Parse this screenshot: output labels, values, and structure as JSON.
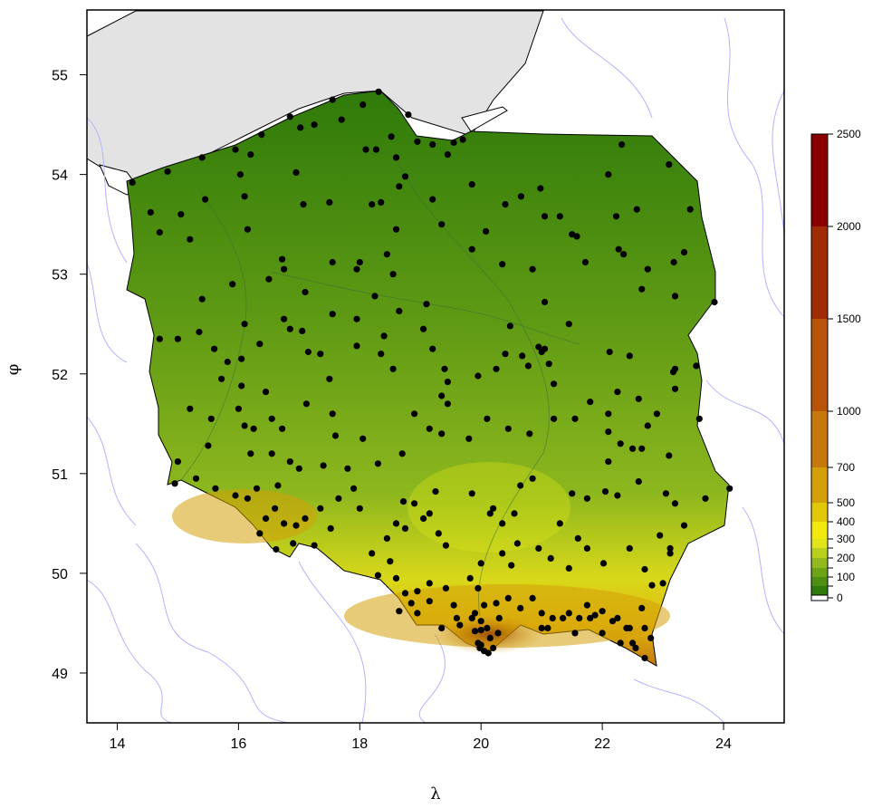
{
  "map": {
    "x_axis": {
      "label": "λ",
      "ticks": [
        {
          "value": 14,
          "label": "14"
        },
        {
          "value": 16,
          "label": "16"
        },
        {
          "value": 18,
          "label": "18"
        },
        {
          "value": 20,
          "label": "20"
        },
        {
          "value": 22,
          "label": "22"
        },
        {
          "value": 24,
          "label": "24"
        }
      ],
      "range": [
        13.5,
        25.0
      ]
    },
    "y_axis": {
      "label": "φ",
      "ticks": [
        {
          "value": 49,
          "label": "49"
        },
        {
          "value": 50,
          "label": "50"
        },
        {
          "value": 51,
          "label": "51"
        },
        {
          "value": 52,
          "label": "52"
        },
        {
          "value": 53,
          "label": "53"
        },
        {
          "value": 54,
          "label": "54"
        },
        {
          "value": 55,
          "label": "55"
        }
      ],
      "range": [
        48.5,
        55.65
      ]
    },
    "colors": {
      "sea": "#e3e3e3",
      "rivers": "#b3b3ff",
      "stations": "#000000",
      "border": "#000000"
    }
  },
  "legend": {
    "levels": [
      {
        "value": 0,
        "label": "0",
        "color": "#ffffff"
      },
      {
        "value": 50,
        "label": "",
        "color": "#2f7a0a"
      },
      {
        "value": 100,
        "label": "100",
        "color": "#4d8f10"
      },
      {
        "value": 150,
        "label": "",
        "color": "#6ea318"
      },
      {
        "value": 200,
        "label": "200",
        "color": "#92ba1f"
      },
      {
        "value": 250,
        "label": "",
        "color": "#b7cf1d"
      },
      {
        "value": 300,
        "label": "300",
        "color": "#e0e418"
      },
      {
        "value": 400,
        "label": "400",
        "color": "#f2ea0c"
      },
      {
        "value": 500,
        "label": "500",
        "color": "#e3c80a"
      },
      {
        "value": 700,
        "label": "700",
        "color": "#d4a00a"
      },
      {
        "value": 1000,
        "label": "1000",
        "color": "#c7780c"
      },
      {
        "value": 1500,
        "label": "1500",
        "color": "#b8530a"
      },
      {
        "value": 2000,
        "label": "2000",
        "color": "#9e2c05"
      },
      {
        "value": 2500,
        "label": "2500",
        "color": "#8a0000"
      }
    ]
  },
  "stations": [
    [
      18.31,
      54.83
    ],
    [
      18.8,
      54.6
    ],
    [
      17.55,
      54.75
    ],
    [
      16.85,
      54.58
    ],
    [
      17.02,
      54.47
    ],
    [
      17.25,
      54.5
    ],
    [
      16.38,
      54.4
    ],
    [
      15.95,
      54.25
    ],
    [
      15.4,
      54.17
    ],
    [
      14.83,
      54.03
    ],
    [
      14.25,
      53.92
    ],
    [
      14.55,
      53.62
    ],
    [
      14.7,
      53.42
    ],
    [
      15.2,
      53.35
    ],
    [
      15.05,
      53.6
    ],
    [
      15.45,
      53.75
    ],
    [
      16.2,
      54.2
    ],
    [
      16.03,
      54.0
    ],
    [
      16.1,
      53.78
    ],
    [
      16.15,
      53.45
    ],
    [
      17.5,
      53.72
    ],
    [
      17.07,
      53.7
    ],
    [
      16.95,
      54.02
    ],
    [
      17.7,
      54.55
    ],
    [
      18.05,
      54.7
    ],
    [
      18.1,
      54.25
    ],
    [
      18.27,
      54.25
    ],
    [
      18.52,
      54.38
    ],
    [
      18.6,
      54.17
    ],
    [
      18.95,
      54.33
    ],
    [
      19.2,
      54.3
    ],
    [
      19.45,
      54.2
    ],
    [
      19.55,
      54.32
    ],
    [
      19.7,
      54.35
    ],
    [
      18.75,
      53.98
    ],
    [
      18.65,
      53.88
    ],
    [
      18.35,
      53.72
    ],
    [
      18.2,
      53.7
    ],
    [
      17.55,
      53.12
    ],
    [
      17.95,
      53.05
    ],
    [
      18.0,
      53.12
    ],
    [
      18.45,
      53.2
    ],
    [
      18.55,
      53.0
    ],
    [
      18.6,
      53.45
    ],
    [
      19.2,
      53.75
    ],
    [
      19.35,
      53.5
    ],
    [
      19.85,
      53.9
    ],
    [
      19.85,
      53.25
    ],
    [
      20.08,
      53.43
    ],
    [
      20.4,
      53.7
    ],
    [
      20.66,
      53.78
    ],
    [
      20.98,
      53.86
    ],
    [
      21.05,
      53.58
    ],
    [
      21.3,
      53.58
    ],
    [
      21.5,
      53.4
    ],
    [
      21.58,
      53.38
    ],
    [
      21.72,
      53.12
    ],
    [
      22.35,
      53.2
    ],
    [
      22.23,
      53.58
    ],
    [
      22.57,
      53.65
    ],
    [
      22.1,
      54.0
    ],
    [
      22.32,
      54.3
    ],
    [
      23.1,
      54.1
    ],
    [
      23.45,
      53.65
    ],
    [
      23.18,
      53.12
    ],
    [
      23.35,
      53.22
    ],
    [
      23.2,
      52.78
    ],
    [
      22.75,
      53.05
    ],
    [
      22.65,
      52.85
    ],
    [
      22.27,
      53.25
    ],
    [
      23.85,
      52.72
    ],
    [
      20.35,
      53.1
    ],
    [
      20.85,
      53.05
    ],
    [
      21.05,
      52.72
    ],
    [
      20.48,
      52.48
    ],
    [
      20.68,
      52.18
    ],
    [
      20.95,
      52.27
    ],
    [
      21.0,
      52.22
    ],
    [
      21.05,
      52.25
    ],
    [
      21.45,
      52.5
    ],
    [
      21.12,
      52.1
    ],
    [
      21.2,
      51.9
    ],
    [
      20.78,
      52.08
    ],
    [
      20.25,
      52.05
    ],
    [
      20.4,
      52.2
    ],
    [
      19.95,
      51.98
    ],
    [
      19.4,
      52.05
    ],
    [
      19.2,
      52.25
    ],
    [
      19.05,
      52.45
    ],
    [
      19.1,
      52.7
    ],
    [
      18.65,
      52.63
    ],
    [
      18.25,
      52.78
    ],
    [
      17.95,
      52.55
    ],
    [
      17.55,
      52.6
    ],
    [
      17.05,
      52.43
    ],
    [
      16.85,
      52.45
    ],
    [
      16.75,
      52.55
    ],
    [
      16.35,
      52.3
    ],
    [
      16.05,
      52.15
    ],
    [
      15.82,
      52.12
    ],
    [
      15.6,
      52.25
    ],
    [
      15.35,
      52.42
    ],
    [
      15.0,
      52.35
    ],
    [
      14.7,
      52.35
    ],
    [
      15.4,
      52.75
    ],
    [
      15.9,
      52.9
    ],
    [
      16.1,
      52.5
    ],
    [
      16.5,
      52.95
    ],
    [
      16.75,
      53.05
    ],
    [
      16.72,
      53.15
    ],
    [
      17.1,
      52.82
    ],
    [
      17.15,
      52.22
    ],
    [
      17.35,
      52.2
    ],
    [
      17.95,
      52.28
    ],
    [
      18.35,
      52.2
    ],
    [
      18.55,
      52.05
    ],
    [
      18.4,
      52.38
    ],
    [
      17.5,
      51.95
    ],
    [
      17.55,
      51.6
    ],
    [
      17.12,
      51.7
    ],
    [
      16.45,
      51.82
    ],
    [
      16.55,
      51.55
    ],
    [
      16.05,
      51.88
    ],
    [
      16.0,
      51.65
    ],
    [
      16.1,
      51.48
    ],
    [
      15.55,
      51.55
    ],
    [
      15.72,
      51.95
    ],
    [
      15.2,
      51.65
    ],
    [
      15.5,
      51.28
    ],
    [
      15.0,
      51.12
    ],
    [
      14.95,
      50.9
    ],
    [
      15.3,
      50.95
    ],
    [
      15.62,
      50.85
    ],
    [
      15.95,
      50.78
    ],
    [
      16.15,
      50.75
    ],
    [
      16.3,
      50.85
    ],
    [
      16.65,
      50.88
    ],
    [
      16.6,
      50.65
    ],
    [
      16.45,
      50.55
    ],
    [
      16.75,
      50.5
    ],
    [
      16.35,
      50.4
    ],
    [
      16.62,
      50.24
    ],
    [
      16.9,
      50.3
    ],
    [
      16.95,
      50.48
    ],
    [
      17.1,
      50.55
    ],
    [
      17.35,
      50.65
    ],
    [
      17.52,
      50.45
    ],
    [
      17.25,
      50.28
    ],
    [
      17.65,
      50.75
    ],
    [
      17.9,
      50.85
    ],
    [
      18.0,
      50.65
    ],
    [
      17.8,
      51.05
    ],
    [
      17.4,
      51.08
    ],
    [
      17.0,
      51.05
    ],
    [
      16.85,
      51.12
    ],
    [
      16.55,
      51.2
    ],
    [
      16.2,
      51.2
    ],
    [
      16.25,
      51.45
    ],
    [
      16.72,
      51.45
    ],
    [
      17.6,
      51.38
    ],
    [
      18.05,
      51.35
    ],
    [
      18.3,
      51.1
    ],
    [
      18.7,
      51.2
    ],
    [
      18.9,
      51.6
    ],
    [
      19.35,
      51.78
    ],
    [
      19.45,
      51.7
    ],
    [
      19.45,
      51.92
    ],
    [
      19.15,
      51.45
    ],
    [
      19.35,
      51.4
    ],
    [
      19.8,
      51.35
    ],
    [
      20.1,
      51.55
    ],
    [
      20.45,
      51.45
    ],
    [
      20.8,
      51.4
    ],
    [
      21.2,
      51.55
    ],
    [
      21.55,
      51.55
    ],
    [
      21.8,
      51.72
    ],
    [
      22.1,
      51.6
    ],
    [
      22.25,
      51.82
    ],
    [
      22.3,
      51.3
    ],
    [
      22.5,
      51.25
    ],
    [
      22.65,
      51.25
    ],
    [
      22.1,
      51.42
    ],
    [
      22.6,
      51.75
    ],
    [
      22.9,
      51.6
    ],
    [
      23.2,
      52.05
    ],
    [
      23.55,
      52.08
    ],
    [
      23.17,
      52.02
    ],
    [
      22.45,
      52.18
    ],
    [
      22.12,
      52.22
    ],
    [
      23.2,
      51.85
    ],
    [
      23.6,
      51.55
    ],
    [
      22.75,
      51.48
    ],
    [
      22.1,
      51.12
    ],
    [
      23.1,
      51.18
    ],
    [
      22.6,
      50.92
    ],
    [
      22.05,
      50.82
    ],
    [
      22.25,
      50.78
    ],
    [
      23.05,
      50.8
    ],
    [
      23.2,
      50.7
    ],
    [
      22.95,
      50.38
    ],
    [
      23.35,
      50.48
    ],
    [
      23.12,
      50.2
    ],
    [
      23.12,
      50.25
    ],
    [
      23.7,
      50.75
    ],
    [
      24.1,
      50.85
    ],
    [
      21.75,
      50.75
    ],
    [
      21.5,
      50.8
    ],
    [
      20.85,
      50.95
    ],
    [
      20.65,
      50.88
    ],
    [
      20.55,
      50.6
    ],
    [
      20.35,
      50.5
    ],
    [
      20.15,
      50.6
    ],
    [
      20.2,
      50.65
    ],
    [
      19.85,
      50.8
    ],
    [
      19.25,
      50.82
    ],
    [
      19.15,
      50.6
    ],
    [
      18.9,
      50.7
    ],
    [
      18.72,
      50.72
    ],
    [
      18.75,
      50.45
    ],
    [
      18.6,
      50.5
    ],
    [
      18.45,
      50.35
    ],
    [
      18.2,
      50.2
    ],
    [
      18.5,
      50.12
    ],
    [
      18.3,
      49.98
    ],
    [
      18.6,
      49.95
    ],
    [
      18.75,
      49.8
    ],
    [
      18.85,
      49.7
    ],
    [
      18.95,
      49.82
    ],
    [
      19.15,
      49.9
    ],
    [
      19.42,
      49.85
    ],
    [
      19.55,
      49.68
    ],
    [
      19.65,
      49.48
    ],
    [
      19.85,
      49.55
    ],
    [
      19.95,
      49.3
    ],
    [
      19.98,
      49.25
    ],
    [
      20.0,
      49.28
    ],
    [
      20.05,
      49.22
    ],
    [
      20.12,
      49.2
    ],
    [
      20.2,
      49.25
    ],
    [
      20.1,
      49.45
    ],
    [
      20.28,
      49.4
    ],
    [
      20.0,
      49.52
    ],
    [
      19.9,
      49.6
    ],
    [
      20.05,
      49.68
    ],
    [
      20.25,
      49.7
    ],
    [
      20.45,
      49.75
    ],
    [
      20.65,
      49.65
    ],
    [
      20.85,
      49.75
    ],
    [
      21.0,
      49.6
    ],
    [
      21.0,
      49.45
    ],
    [
      21.18,
      49.55
    ],
    [
      21.45,
      49.6
    ],
    [
      21.62,
      49.55
    ],
    [
      21.75,
      49.68
    ],
    [
      21.88,
      49.58
    ],
    [
      22.0,
      49.62
    ],
    [
      22.17,
      49.52
    ],
    [
      22.4,
      49.45
    ],
    [
      22.7,
      49.45
    ],
    [
      22.55,
      49.25
    ],
    [
      22.8,
      49.35
    ],
    [
      22.7,
      49.15
    ],
    [
      22.45,
      49.45
    ],
    [
      22.3,
      49.3
    ],
    [
      22.5,
      49.3
    ],
    [
      22.65,
      49.65
    ],
    [
      22.82,
      49.88
    ],
    [
      22.7,
      50.04
    ],
    [
      22.45,
      50.25
    ],
    [
      22.02,
      50.1
    ],
    [
      21.75,
      50.25
    ],
    [
      21.45,
      50.05
    ],
    [
      21.15,
      50.15
    ],
    [
      20.95,
      50.25
    ],
    [
      20.6,
      50.3
    ],
    [
      20.5,
      50.08
    ],
    [
      20.35,
      50.2
    ],
    [
      20.0,
      50.1
    ],
    [
      19.95,
      49.85
    ],
    [
      19.82,
      49.95
    ],
    [
      19.42,
      50.28
    ],
    [
      19.3,
      50.4
    ],
    [
      19.05,
      50.55
    ],
    [
      18.65,
      49.62
    ],
    [
      18.95,
      49.6
    ],
    [
      19.15,
      49.72
    ],
    [
      19.35,
      49.45
    ],
    [
      19.6,
      49.55
    ],
    [
      20.3,
      49.55
    ],
    [
      21.1,
      49.45
    ],
    [
      21.35,
      49.55
    ],
    [
      21.55,
      49.4
    ],
    [
      21.8,
      49.55
    ],
    [
      22.0,
      49.4
    ],
    [
      22.25,
      49.55
    ],
    [
      23.0,
      49.9
    ],
    [
      21.3,
      50.5
    ],
    [
      21.6,
      50.35
    ],
    [
      20.0,
      49.43
    ],
    [
      20.15,
      49.35
    ],
    [
      19.9,
      49.42
    ]
  ]
}
